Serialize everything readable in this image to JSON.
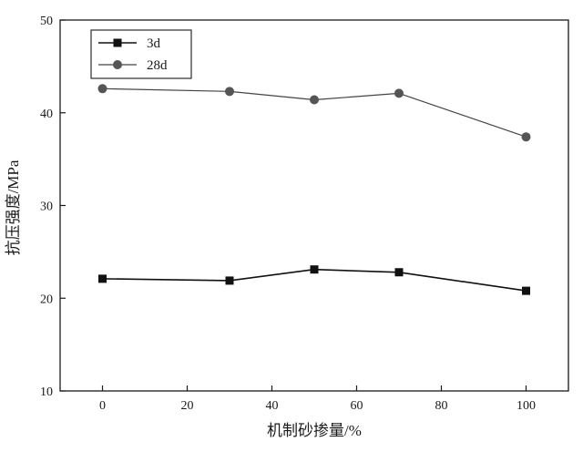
{
  "chart_data": {
    "type": "line",
    "title": "",
    "xlabel": "机制砂掺量/%",
    "ylabel": "抗压强度/MPa",
    "xlim": [
      -10,
      110
    ],
    "ylim": [
      10,
      50
    ],
    "xticks": [
      0,
      20,
      40,
      60,
      80,
      100
    ],
    "yticks": [
      10,
      20,
      30,
      40,
      50
    ],
    "x": [
      0,
      30,
      50,
      70,
      100
    ],
    "series": [
      {
        "name": "3d",
        "marker": "square",
        "color": "#111111",
        "values": [
          22.1,
          21.9,
          23.1,
          22.8,
          20.8
        ]
      },
      {
        "name": "28d",
        "marker": "circle",
        "color": "#444444",
        "values": [
          42.6,
          42.3,
          41.4,
          42.1,
          37.4
        ]
      }
    ],
    "legend_position": "top-left",
    "grid": false
  }
}
